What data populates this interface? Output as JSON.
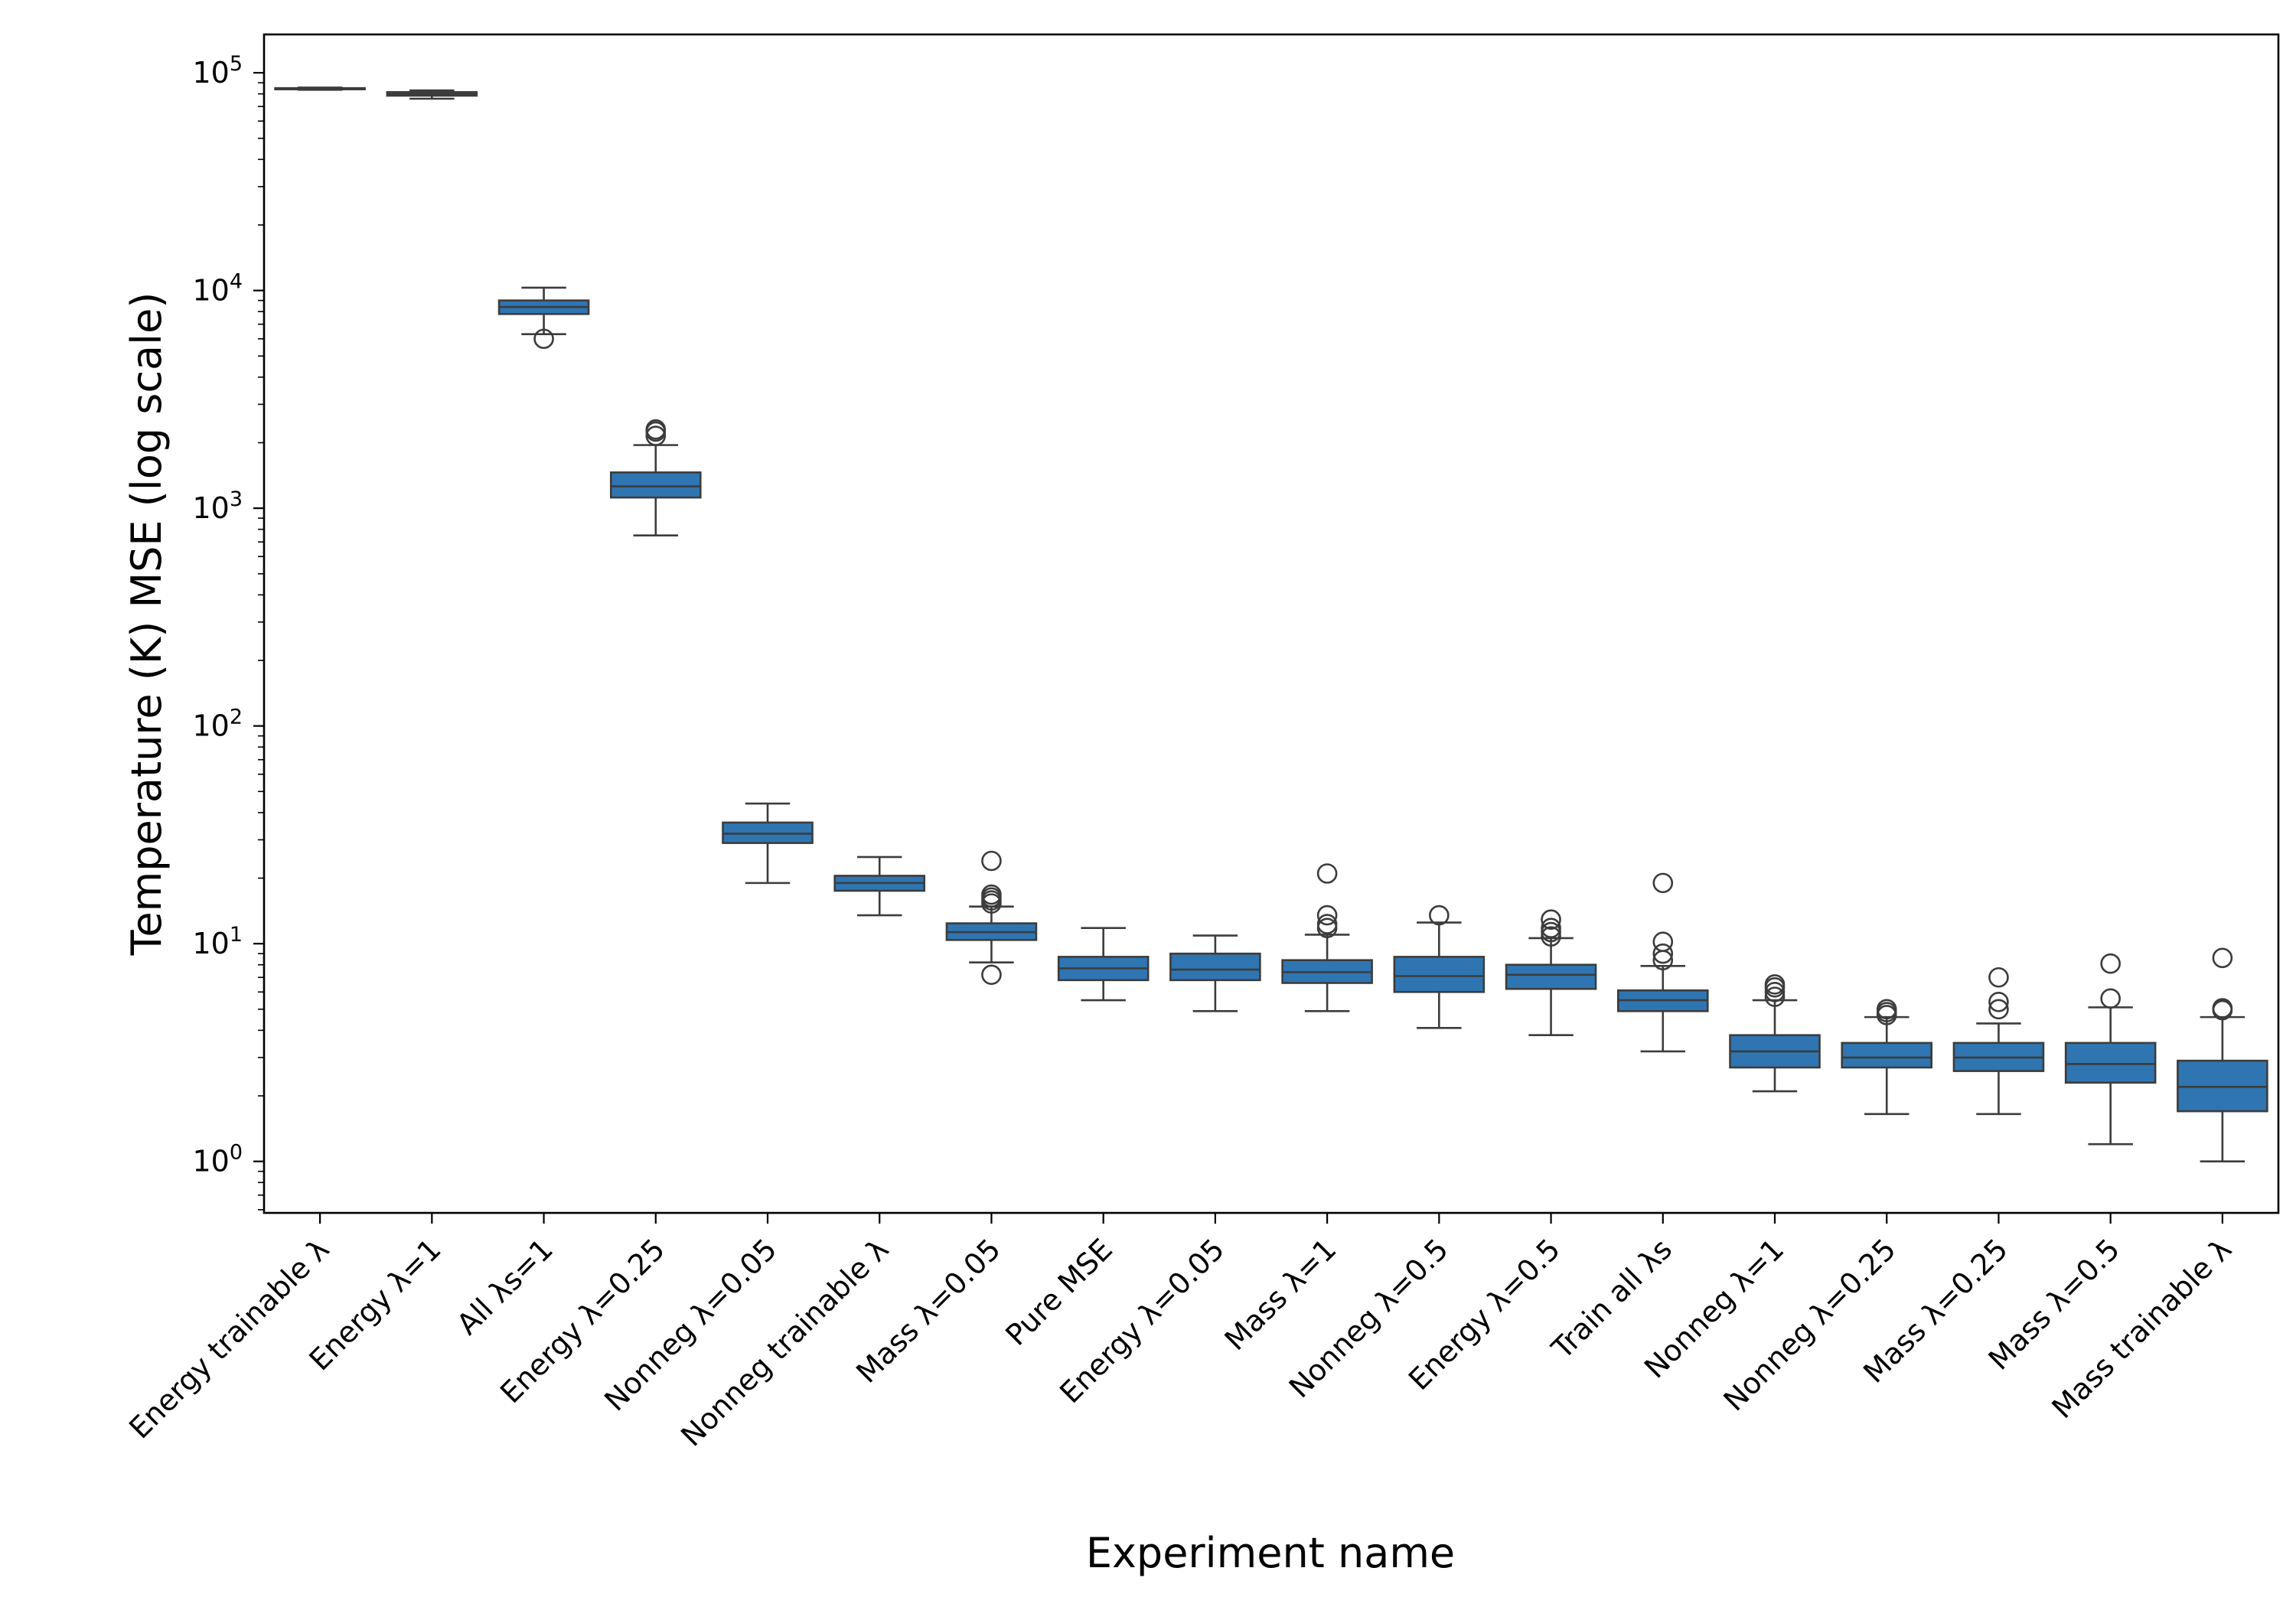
{
  "chart_data": {
    "type": "box",
    "xlabel": "Experiment name",
    "ylabel": "Temperature (K) MSE (log scale)",
    "yscale": "log",
    "ylim": [
      0.58,
      150000
    ],
    "y_tick_labels": [
      {
        "base": "10",
        "exp": "0",
        "value": 1
      },
      {
        "base": "10",
        "exp": "1",
        "value": 10
      },
      {
        "base": "10",
        "exp": "2",
        "value": 100
      },
      {
        "base": "10",
        "exp": "3",
        "value": 1000
      },
      {
        "base": "10",
        "exp": "4",
        "value": 10000
      },
      {
        "base": "10",
        "exp": "5",
        "value": 100000
      }
    ],
    "box_color": "#2f75b2",
    "line_color": "#3c3c3c",
    "categories": [
      {
        "name": "Energy trainable λ",
        "whislo": 83500,
        "q1": 84000,
        "median": 84500,
        "q3": 85000,
        "whishi": 85500,
        "fliers": []
      },
      {
        "name": "Energy λ=1",
        "whislo": 76000,
        "q1": 78500,
        "median": 80000,
        "q3": 81500,
        "whishi": 83000,
        "fliers": []
      },
      {
        "name": "All λs=1",
        "whislo": 6300,
        "q1": 7800,
        "median": 8400,
        "q3": 9000,
        "whishi": 10300,
        "fliers": [
          6000
        ]
      },
      {
        "name": "Energy λ=0.25",
        "whislo": 750,
        "q1": 1120,
        "median": 1260,
        "q3": 1460,
        "whishi": 1950,
        "fliers": [
          2150,
          2250,
          2300
        ]
      },
      {
        "name": "Nonneg λ=0.05",
        "whislo": 19,
        "q1": 29,
        "median": 32,
        "q3": 36,
        "whishi": 44,
        "fliers": []
      },
      {
        "name": "Nonneg trainable λ",
        "whislo": 13.5,
        "q1": 17.5,
        "median": 19,
        "q3": 20.5,
        "whishi": 25,
        "fliers": []
      },
      {
        "name": "Mass λ=0.05",
        "whislo": 8.2,
        "q1": 10.4,
        "median": 11.3,
        "q3": 12.4,
        "whishi": 14.8,
        "fliers": [
          7.2,
          15.3,
          15.8,
          16.3,
          16.8,
          24
        ]
      },
      {
        "name": "Pure MSE",
        "whislo": 5.5,
        "q1": 6.8,
        "median": 7.7,
        "q3": 8.7,
        "whishi": 11.8,
        "fliers": []
      },
      {
        "name": "Energy λ=0.05",
        "whislo": 4.9,
        "q1": 6.8,
        "median": 7.6,
        "q3": 9.0,
        "whishi": 10.9,
        "fliers": []
      },
      {
        "name": "Mass λ=1",
        "whislo": 4.9,
        "q1": 6.6,
        "median": 7.4,
        "q3": 8.4,
        "whishi": 11.0,
        "fliers": [
          11.8,
          12.3,
          13.5,
          21
        ]
      },
      {
        "name": "Nonneg λ=0.5",
        "whislo": 4.1,
        "q1": 6.0,
        "median": 7.1,
        "q3": 8.7,
        "whishi": 12.5,
        "fliers": [
          13.5
        ]
      },
      {
        "name": "Energy λ=0.5",
        "whislo": 3.8,
        "q1": 6.2,
        "median": 7.2,
        "q3": 8.0,
        "whishi": 10.6,
        "fliers": [
          10.8,
          11.3,
          11.8,
          12.9
        ]
      },
      {
        "name": "Train all λs",
        "whislo": 3.2,
        "q1": 4.9,
        "median": 5.5,
        "q3": 6.1,
        "whishi": 7.9,
        "fliers": [
          8.4,
          9.0,
          10.2,
          19
        ]
      },
      {
        "name": "Nonneg λ=1",
        "whislo": 2.1,
        "q1": 2.7,
        "median": 3.2,
        "q3": 3.8,
        "whishi": 5.5,
        "fliers": [
          5.7,
          6.0,
          6.3,
          6.5
        ]
      },
      {
        "name": "Nonneg λ=0.25",
        "whislo": 1.65,
        "q1": 2.7,
        "median": 3.0,
        "q3": 3.5,
        "whishi": 4.6,
        "fliers": [
          4.7,
          4.85,
          5.0
        ]
      },
      {
        "name": "Mass λ=0.25",
        "whislo": 1.65,
        "q1": 2.6,
        "median": 3.0,
        "q3": 3.5,
        "whishi": 4.3,
        "fliers": [
          5.0,
          5.4,
          7.0
        ]
      },
      {
        "name": "Mass λ=0.5",
        "whislo": 1.2,
        "q1": 2.3,
        "median": 2.8,
        "q3": 3.5,
        "whishi": 5.1,
        "fliers": [
          5.6,
          8.1
        ]
      },
      {
        "name": "Mass trainable λ",
        "whislo": 1.0,
        "q1": 1.7,
        "median": 2.2,
        "q3": 2.9,
        "whishi": 4.6,
        "fliers": [
          4.95,
          5.05,
          8.6
        ]
      }
    ]
  }
}
